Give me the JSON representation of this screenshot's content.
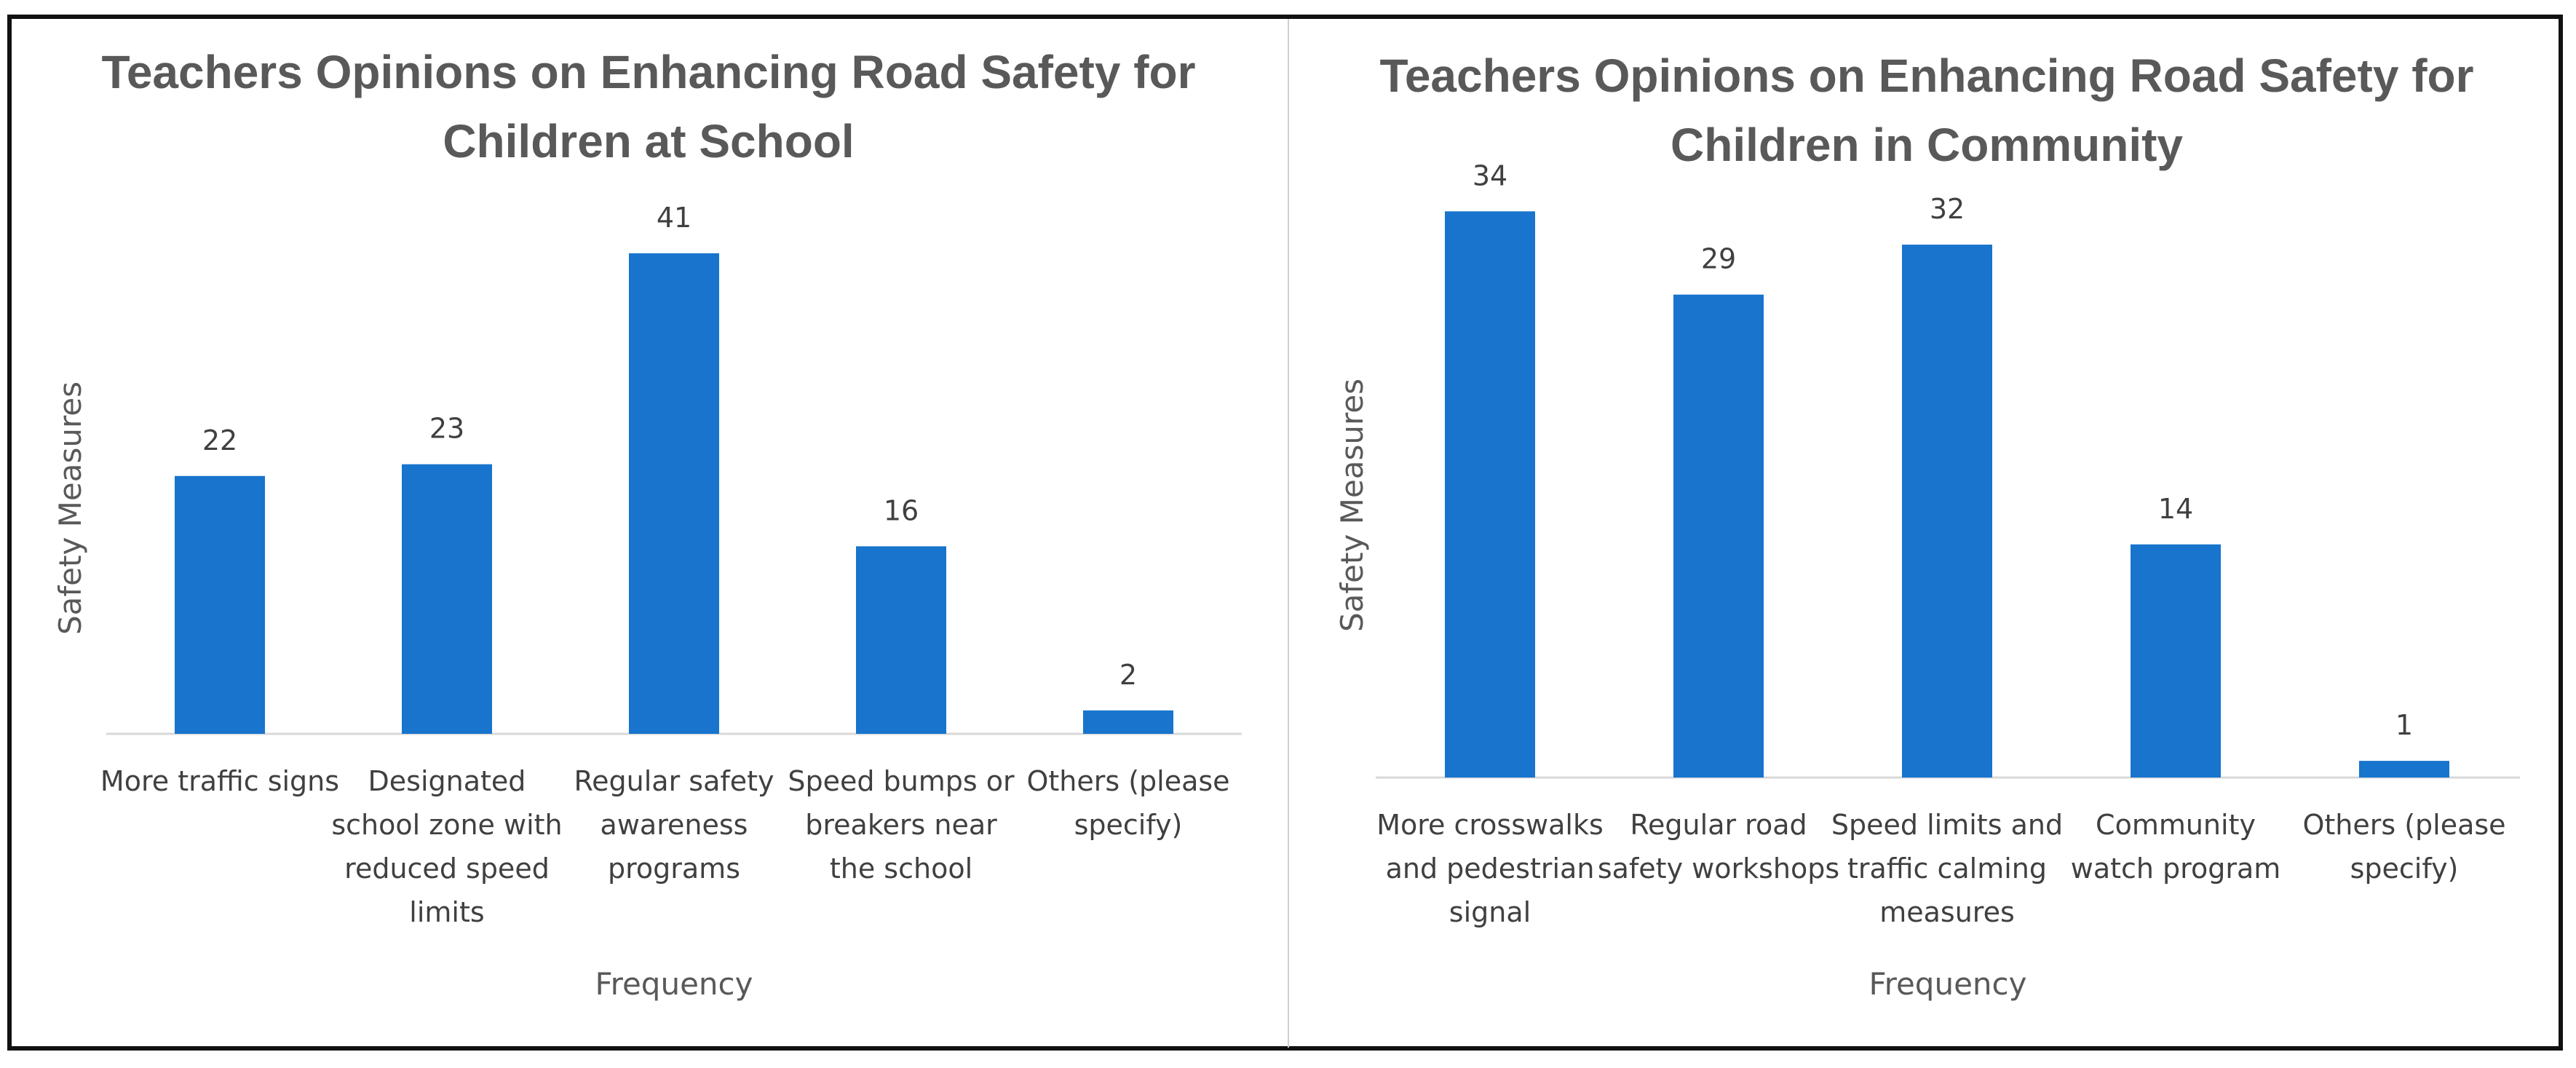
{
  "chart_data": [
    {
      "type": "bar",
      "title": [
        "Teachers Opinions on Enhancing Road Safety for",
        "Children at School"
      ],
      "xlabel": "Frequency",
      "ylabel": "Safety Measures",
      "categories": [
        [
          "More traffic signs"
        ],
        [
          "Designated",
          "school zone with",
          "reduced speed",
          "limits"
        ],
        [
          "Regular safety",
          "awareness",
          "programs"
        ],
        [
          "Speed bumps or",
          "breakers near",
          "the school"
        ],
        [
          "Others (please",
          "specify)"
        ]
      ],
      "values": [
        22,
        23,
        41,
        16,
        2
      ],
      "value_labels": [
        "22",
        "23",
        "41",
        "16",
        "2"
      ],
      "ylim": [
        0,
        50
      ],
      "bar_color": "#1874CD",
      "grid": false,
      "legend": false
    },
    {
      "type": "bar",
      "title": [
        "Teachers Opinions on Enhancing Road Safety for",
        "Children in Community"
      ],
      "xlabel": "Frequency",
      "ylabel": "Safety Measures",
      "categories": [
        [
          "More crosswalks",
          "and pedestrian",
          "signal"
        ],
        [
          "Regular road",
          "safety workshops"
        ],
        [
          "Speed limits and",
          "traffic calming",
          "measures"
        ],
        [
          "Community",
          "watch program"
        ],
        [
          "Others (please",
          "specify)"
        ]
      ],
      "values": [
        34,
        29,
        32,
        14,
        1
      ],
      "value_labels": [
        "34",
        "29",
        "32",
        "14",
        "1"
      ],
      "ylim": [
        0,
        40
      ],
      "bar_color": "#1874CD",
      "grid": false,
      "legend": false
    }
  ]
}
